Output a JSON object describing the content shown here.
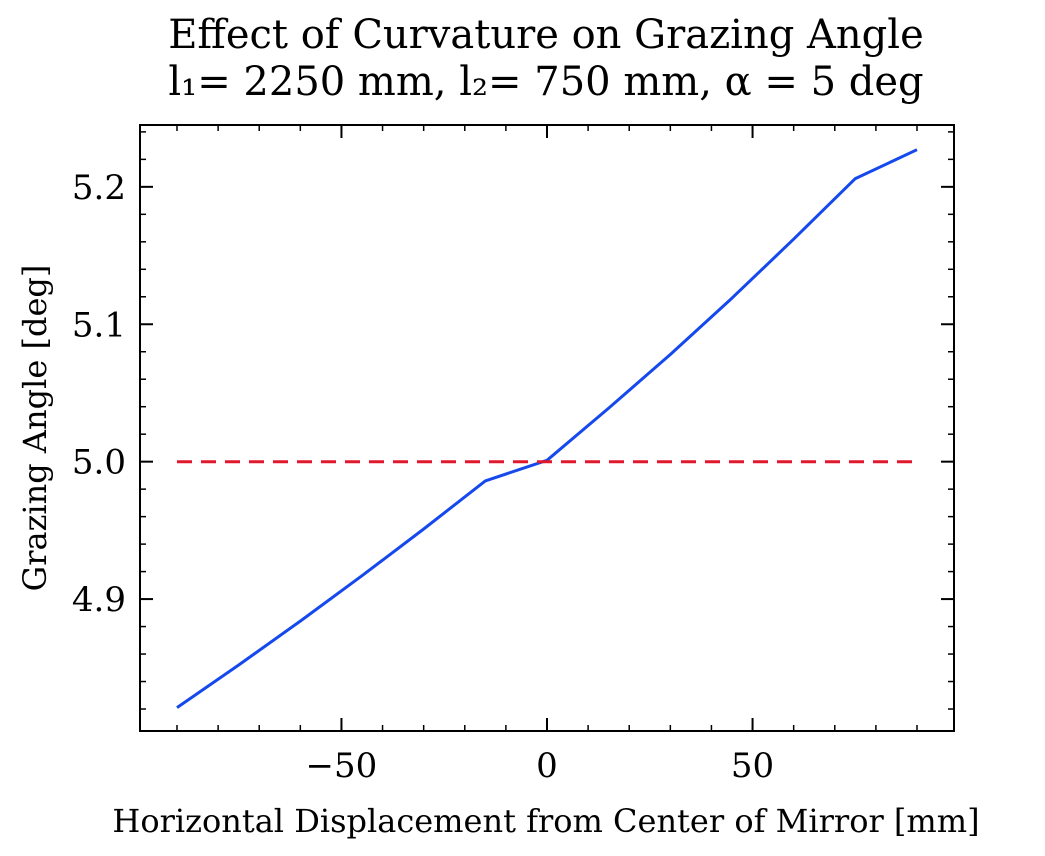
{
  "chart_data": {
    "type": "line",
    "title": "Effect of Curvature on Grazing Angle",
    "subtitle": "l₁= 2250 mm, l₂= 750 mm, α = 5 deg",
    "xlabel": "Horizontal Displacement from Center of Mirror [mm]",
    "ylabel": "Grazing Angle [deg]",
    "xlim": [
      -99,
      99
    ],
    "ylim": [
      4.804,
      5.245
    ],
    "xticks": [
      {
        "value": -50,
        "label": "−50"
      },
      {
        "value": 0,
        "label": "0"
      },
      {
        "value": 50,
        "label": "50"
      }
    ],
    "yticks": [
      {
        "value": 4.9,
        "label": "4.9"
      },
      {
        "value": 5.0,
        "label": "5.0"
      },
      {
        "value": 5.1,
        "label": "5.1"
      },
      {
        "value": 5.2,
        "label": "5.2"
      }
    ],
    "x_minor_step": 10,
    "y_minor_step": 0.02,
    "grid": false,
    "series": [
      {
        "color": "#1549ee",
        "style": "solid",
        "x": [
          -90,
          -75,
          -60,
          -45,
          -30,
          -15,
          0,
          15,
          30,
          45,
          60,
          75,
          90
        ],
        "y": [
          4.821,
          4.852,
          4.884,
          4.917,
          4.951,
          4.986,
          5.001,
          5.039,
          5.078,
          5.119,
          5.162,
          5.206,
          5.227
        ]
      },
      {
        "color": "#e0192d",
        "style": "dashed",
        "x": [
          -90,
          90
        ],
        "y": [
          5.0,
          5.0
        ]
      }
    ]
  }
}
